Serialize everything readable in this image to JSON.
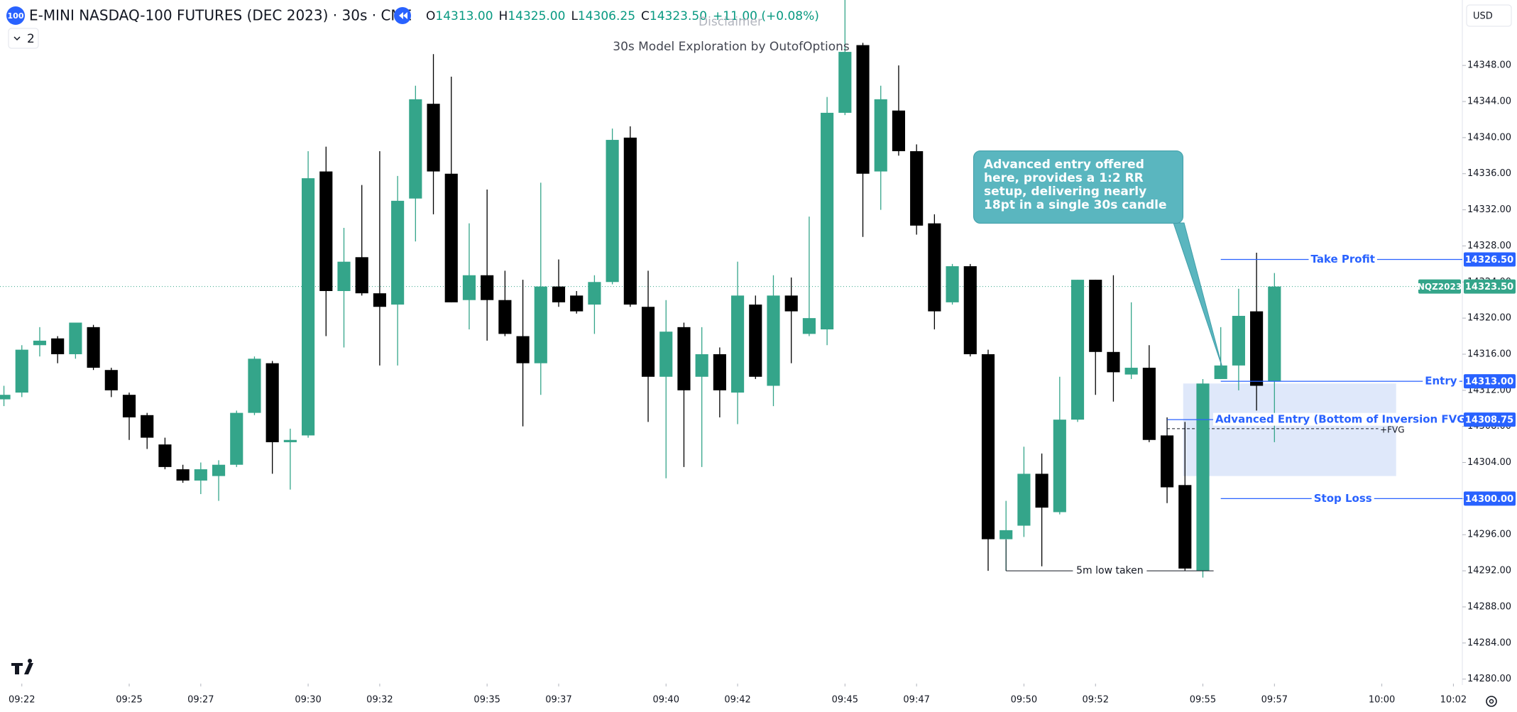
{
  "chart_data": {
    "type": "candlestick",
    "symbol_badge": "100",
    "title": "E-MINI NASDAQ-100 FUTURES (DEC 2023) · 30s · CME",
    "ohlc_header": [
      {
        "key": "O",
        "text": "14313.00"
      },
      {
        "key": "H",
        "text": "14325.00"
      },
      {
        "key": "L",
        "text": "14306.25"
      },
      {
        "key": "C",
        "text": "14323.50"
      }
    ],
    "change": "+11.00 (+0.08%)",
    "indicator_count": "2",
    "watermark": "Disclaimer",
    "subtitle": "30s Model Exploration by OutofOptions",
    "currency": "USD",
    "up_color": "#34a58a",
    "down_color": "#000000",
    "open": [
      14311,
      14311.75,
      14317,
      14317.75,
      14316,
      14319,
      14314.25,
      14311.5,
      14309.25,
      14306,
      14303.25,
      14302,
      14302.5,
      14303.75,
      14309.5,
      14315,
      14306.25,
      14307,
      14336.25,
      14323,
      14326.75,
      14322.75,
      14321.5,
      14333.25,
      14343.75,
      14336,
      14322,
      14324.75,
      14322,
      14318,
      14315,
      14323.5,
      14322.5,
      14321.5,
      14324,
      14340,
      14321.25,
      14313.5,
      14319,
      14313.5,
      14316,
      14311.75,
      14321.5,
      14312.5,
      14322.5,
      14318.25,
      14318.75,
      14342.75,
      14350.25,
      14336.25,
      14343,
      14338.5,
      14330.5,
      14321.75,
      14325.75,
      14316,
      14295.5,
      14297,
      14302.75,
      14298.5,
      14308.75,
      14324.25,
      14316.25,
      14313.75,
      14314.5,
      14307,
      14301.5,
      14292,
      14313.25,
      14314.75,
      14320.75,
      14313
    ],
    "high": [
      14312.5,
      14317,
      14319,
      14318,
      14319.5,
      14319.25,
      14314.5,
      14311.75,
      14309.5,
      14306.75,
      14303.75,
      14304,
      14304.25,
      14309.75,
      14315.75,
      14315.25,
      14307.75,
      14338.5,
      14339,
      14330,
      14334.75,
      14338.5,
      14335.75,
      14345.75,
      14349.25,
      14346.75,
      14330.5,
      14334.25,
      14325.25,
      14324.25,
      14335,
      14326.5,
      14323,
      14324.75,
      14341,
      14341.25,
      14325.25,
      14322,
      14319.5,
      14319,
      14316.75,
      14326.25,
      14322.5,
      14324.75,
      14324.5,
      14331.25,
      14344.5,
      14355.25,
      14350.5,
      14345.75,
      14348,
      14339.25,
      14331.5,
      14326,
      14326,
      14316.5,
      14299.75,
      14305.75,
      14305,
      14313.5,
      14324.25,
      14324.25,
      14324.75,
      14321.75,
      14317,
      14309,
      14308.5,
      14313.25,
      14319,
      14323.25,
      14327.25,
      14325
    ],
    "low": [
      14310.25,
      14311.25,
      14315.75,
      14315,
      14315.5,
      14314.25,
      14311.25,
      14306.5,
      14305.5,
      14303.25,
      14301.75,
      14300.5,
      14299.75,
      14303.5,
      14309.25,
      14302.75,
      14301,
      14306.75,
      14318,
      14316.75,
      14322.5,
      14314.75,
      14314.75,
      14328.5,
      14331.5,
      14321.75,
      14318.75,
      14317.5,
      14318,
      14308,
      14311.5,
      14321.25,
      14320.5,
      14318.25,
      14323.75,
      14321.25,
      14308.5,
      14302.25,
      14303.5,
      14303.5,
      14309,
      14308.25,
      14313.25,
      14310.25,
      14315,
      14318,
      14317,
      14342.5,
      14329,
      14332,
      14338,
      14329.25,
      14318.75,
      14321.5,
      14315.75,
      14292,
      14292,
      14295.75,
      14292.5,
      14298.25,
      14308.5,
      14311.5,
      14310.75,
      14313.25,
      14306.25,
      14299.5,
      14292,
      14291.25,
      14313.25,
      14312,
      14309.75,
      14306.25
    ],
    "close": [
      14311.5,
      14316.5,
      14317.5,
      14316,
      14319.5,
      14314.5,
      14312,
      14309,
      14306.75,
      14303.5,
      14302,
      14303.25,
      14303.75,
      14309.5,
      14315.5,
      14306.25,
      14306.5,
      14335.5,
      14323,
      14326.25,
      14322.75,
      14321.25,
      14333,
      14344.25,
      14336.25,
      14321.75,
      14324.75,
      14322,
      14318.25,
      14315,
      14323.5,
      14321.75,
      14320.75,
      14324,
      14339.75,
      14321.5,
      14313.5,
      14318.5,
      14312,
      14316,
      14312,
      14322.5,
      14313.5,
      14322.5,
      14320.75,
      14320,
      14342.75,
      14349.5,
      14336,
      14344.25,
      14338.5,
      14330.25,
      14320.75,
      14325.75,
      14316,
      14295.5,
      14296.5,
      14302.75,
      14299,
      14308.75,
      14324.25,
      14316.25,
      14314,
      14314.5,
      14306.5,
      14301.25,
      14292.25,
      14312.75,
      14314.75,
      14320.25,
      14312.5,
      14323.5
    ],
    "xlim": [
      -0.22,
      81.5
    ],
    "xticks": [
      {
        "value": 1,
        "label": "09:22"
      },
      {
        "value": 7,
        "label": "09:25"
      },
      {
        "value": 11,
        "label": "09:27"
      },
      {
        "value": 17,
        "label": "09:30"
      },
      {
        "value": 21,
        "label": "09:32"
      },
      {
        "value": 27,
        "label": "09:35"
      },
      {
        "value": 31,
        "label": "09:37"
      },
      {
        "value": 37,
        "label": "09:40"
      },
      {
        "value": 41,
        "label": "09:42"
      },
      {
        "value": 47,
        "label": "09:45"
      },
      {
        "value": 51,
        "label": "09:47"
      },
      {
        "value": 57,
        "label": "09:50"
      },
      {
        "value": 61,
        "label": "09:52"
      },
      {
        "value": 67,
        "label": "09:55"
      },
      {
        "value": 71,
        "label": "09:57"
      },
      {
        "value": 77,
        "label": "10:00"
      },
      {
        "value": 81,
        "label": "10:02"
      }
    ],
    "ylim": [
      14279.5,
      14355.25
    ],
    "yticks": [
      {
        "value": 14280,
        "label": "14280.00"
      },
      {
        "value": 14284,
        "label": "14284.00"
      },
      {
        "value": 14288,
        "label": "14288.00"
      },
      {
        "value": 14292,
        "label": "14292.00"
      },
      {
        "value": 14296,
        "label": "14296.00"
      },
      {
        "value": 14300,
        "label": "14300.00"
      },
      {
        "value": 14304,
        "label": "14304.00"
      },
      {
        "value": 14308,
        "label": "14308.00"
      },
      {
        "value": 14312,
        "label": "14312.00"
      },
      {
        "value": 14316,
        "label": "14316.00"
      },
      {
        "value": 14320,
        "label": "14320.00"
      },
      {
        "value": 14324,
        "label": "14324.00"
      },
      {
        "value": 14328,
        "label": "14328.00"
      },
      {
        "value": 14332,
        "label": "14332.00"
      },
      {
        "value": 14336,
        "label": "14336.00"
      },
      {
        "value": 14340,
        "label": "14340.00"
      },
      {
        "value": 14344,
        "label": "14344.00"
      },
      {
        "value": 14348,
        "label": "14348.00"
      }
    ],
    "level_color": "#2962ff",
    "levels": [
      {
        "label": "Take Profit",
        "value": 14326.5,
        "value_label": "14326.50"
      },
      {
        "label": "Entry",
        "value": 14313,
        "value_label": "14313.00"
      },
      {
        "label": "Advanced Entry (Bottom of Inversion FVG)",
        "value": 14308.75,
        "value_label": "14308.75"
      },
      {
        "label": "Stop Loss",
        "value": 14300,
        "value_label": "14300.00"
      }
    ],
    "last_price": {
      "name": "NQZ2023",
      "value": 14323.5,
      "value_label": "14323.50"
    },
    "fvg": {
      "label": "+FVG",
      "top": 14312.75,
      "bottom": 14302.5,
      "mid": 14307.75
    },
    "low_taken": {
      "label": "5m low taken",
      "value": 14292
    },
    "callout": "Advanced entry offered here, provides a 1:2 RR setup, delivering nearly 18pt in a single 30s candle"
  }
}
